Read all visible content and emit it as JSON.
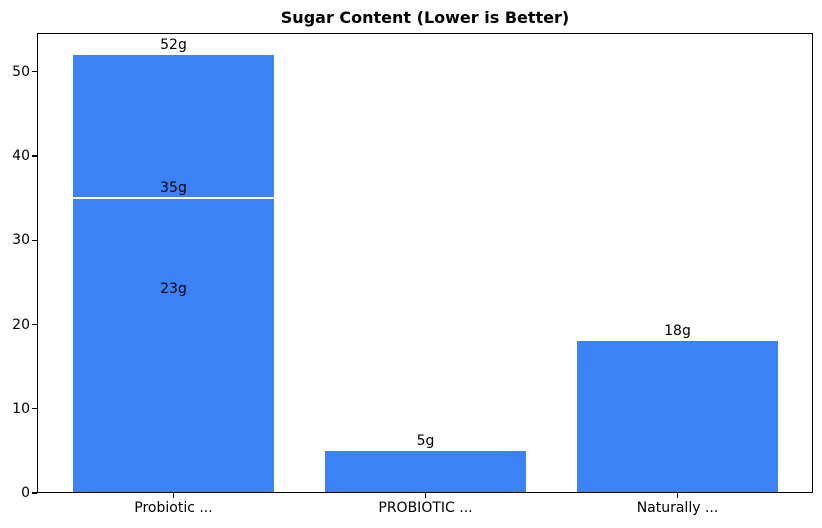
{
  "chart_data": {
    "type": "bar",
    "title": "Sugar Content (Lower is Better)",
    "xlabel": "",
    "ylabel": "",
    "categories": [
      "Probiotic ...",
      "PROBIOTIC ...",
      "Naturally ..."
    ],
    "bars": [
      {
        "category_index": 0,
        "value": 52,
        "label": "52g",
        "white_top_edge": false
      },
      {
        "category_index": 0,
        "value": 35,
        "label": "35g",
        "white_top_edge": true
      },
      {
        "category_index": 0,
        "value": 23,
        "label": "23g",
        "white_top_edge": false
      },
      {
        "category_index": 1,
        "value": 5,
        "label": "5g",
        "white_top_edge": false
      },
      {
        "category_index": 2,
        "value": 18,
        "label": "18g",
        "white_top_edge": false
      }
    ],
    "y_ticks": [
      0,
      10,
      20,
      30,
      40,
      50
    ],
    "ylim": [
      0,
      54.6
    ],
    "bar_color": "#3b82f6",
    "background_color": "#ffffff",
    "text_color": "#000000",
    "grid": false,
    "legend": false
  }
}
